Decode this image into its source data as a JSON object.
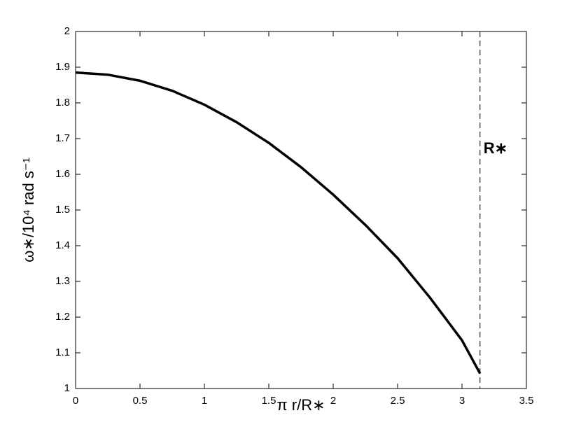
{
  "chart_data": {
    "type": "line",
    "x_label": "π r/R∗",
    "y_label": "ω∗/10⁴ rad s⁻¹",
    "x": [
      0,
      0.25,
      0.5,
      0.75,
      1,
      1.25,
      1.5,
      1.75,
      2,
      2.25,
      2.5,
      2.75,
      3,
      3.14
    ],
    "series": [
      {
        "color": "#000000",
        "values": [
          1.885,
          1.879,
          1.862,
          1.834,
          1.795,
          1.746,
          1.688,
          1.62,
          1.543,
          1.458,
          1.365,
          1.255,
          1.135,
          1.042
        ]
      }
    ],
    "xlim": [
      0,
      3.5
    ],
    "xticks": [
      0,
      0.5,
      1,
      1.5,
      2,
      2.5,
      3,
      3.5
    ],
    "ylim": [
      1,
      2
    ],
    "yticks": [
      1,
      1.1,
      1.2,
      1.3,
      1.4,
      1.5,
      1.6,
      1.7,
      1.8,
      1.9,
      2
    ],
    "vline": {
      "x": 3.14,
      "label": "R∗",
      "label_y": 1.67
    },
    "grid": false
  }
}
